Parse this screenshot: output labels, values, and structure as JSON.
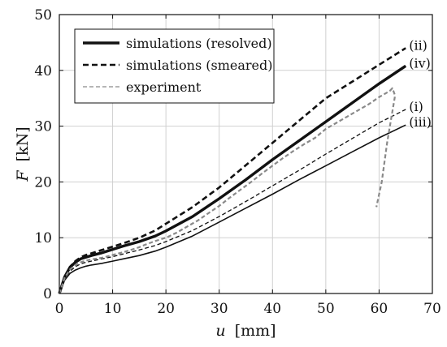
{
  "chart_data": {
    "type": "line",
    "xlabel_var": "u",
    "xlabel_unit": "[mm]",
    "ylabel_var": "F",
    "ylabel_unit": "[kN]",
    "xlim": [
      0,
      70
    ],
    "ylim": [
      0,
      50
    ],
    "xticks": [
      0,
      10,
      20,
      30,
      40,
      50,
      60,
      70
    ],
    "yticks": [
      0,
      10,
      20,
      30,
      40,
      50
    ],
    "grid": true,
    "legend_position": "top-left",
    "legend": [
      {
        "label": "simulations (resolved)",
        "style": "solid-thick",
        "color": "#111111"
      },
      {
        "label": "simulations (smeared)",
        "style": "dashed",
        "color": "#111111"
      },
      {
        "label": "experiment",
        "style": "dashed-thin",
        "color": "#8a8a8a"
      }
    ],
    "series": [
      {
        "name": "(ii)",
        "style": "dashed",
        "color": "#111111",
        "x": [
          0,
          1,
          2,
          3,
          4,
          5,
          6,
          8,
          10,
          12,
          15,
          18,
          20,
          25,
          30,
          35,
          40,
          45,
          50,
          55,
          60,
          65
        ],
        "y": [
          0,
          3.0,
          4.8,
          5.8,
          6.5,
          6.9,
          7.2,
          7.8,
          8.4,
          9.0,
          10.0,
          11.3,
          12.5,
          15.5,
          19.0,
          23.0,
          27.0,
          31.0,
          35.0,
          38.0,
          41.0,
          44.0
        ]
      },
      {
        "name": "(iv)",
        "style": "solid-thick",
        "color": "#111111",
        "x": [
          0,
          1,
          2,
          3,
          4,
          5,
          6,
          8,
          10,
          12,
          15,
          18,
          20,
          25,
          30,
          35,
          40,
          45,
          50,
          55,
          60,
          65
        ],
        "y": [
          0,
          3.0,
          4.7,
          5.6,
          6.2,
          6.5,
          6.8,
          7.3,
          7.9,
          8.5,
          9.3,
          10.3,
          11.2,
          13.8,
          17.0,
          20.4,
          24.0,
          27.4,
          30.8,
          34.2,
          37.6,
          40.8
        ]
      },
      {
        "name": "(i)",
        "style": "dashed-thin",
        "color": "#111111",
        "x": [
          0,
          1,
          2,
          3,
          4,
          5,
          6,
          8,
          10,
          12,
          15,
          18,
          20,
          25,
          30,
          35,
          40,
          45,
          50,
          55,
          60,
          65
        ],
        "y": [
          0,
          2.6,
          4.0,
          4.8,
          5.3,
          5.6,
          5.8,
          6.2,
          6.6,
          7.1,
          7.8,
          8.6,
          9.3,
          11.3,
          13.8,
          16.5,
          19.3,
          22.1,
          25.0,
          27.8,
          30.6,
          33.0
        ]
      },
      {
        "name": "(iii)",
        "style": "solid",
        "color": "#111111",
        "x": [
          0,
          1,
          2,
          3,
          4,
          5,
          6,
          8,
          10,
          12,
          15,
          18,
          20,
          25,
          30,
          35,
          40,
          45,
          50,
          55,
          60,
          65
        ],
        "y": [
          0,
          2.4,
          3.6,
          4.2,
          4.6,
          4.9,
          5.1,
          5.4,
          5.8,
          6.2,
          6.8,
          7.6,
          8.3,
          10.3,
          12.8,
          15.3,
          17.8,
          20.4,
          22.9,
          25.4,
          27.9,
          30.2
        ]
      },
      {
        "name": "experiment",
        "style": "dashed-thick-gray",
        "color": "#8a8a8a",
        "x": [
          0,
          1,
          2,
          3,
          4,
          5,
          6,
          8,
          10,
          12,
          14,
          15,
          16,
          18,
          20,
          22,
          24,
          26,
          28,
          30,
          32,
          34,
          36,
          38,
          40,
          42,
          44,
          46,
          48,
          50,
          52,
          54,
          56,
          58,
          60,
          62,
          62.5,
          63,
          61.5,
          60.5,
          59.5
        ],
        "y": [
          0,
          2.8,
          4.3,
          5.1,
          5.6,
          5.9,
          6.1,
          6.4,
          6.9,
          7.4,
          8.0,
          8.3,
          8.7,
          9.4,
          10.0,
          10.9,
          12.0,
          13.1,
          14.4,
          15.7,
          17.2,
          18.6,
          20.0,
          21.5,
          22.9,
          24.3,
          25.6,
          26.8,
          27.9,
          29.5,
          30.6,
          31.7,
          32.8,
          33.9,
          35.2,
          36.3,
          36.8,
          35.5,
          27.0,
          20.0,
          15.5
        ]
      }
    ],
    "curve_labels": [
      {
        "text": "(ii)",
        "series": "(ii)"
      },
      {
        "text": "(iv)",
        "series": "(iv)"
      },
      {
        "text": "(i)",
        "series": "(i)"
      },
      {
        "text": "(iii)",
        "series": "(iii)"
      }
    ]
  }
}
